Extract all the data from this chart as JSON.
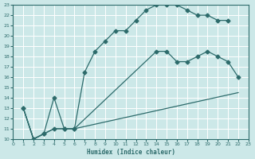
{
  "xlabel": "Humidex (Indice chaleur)",
  "xlim": [
    0,
    23
  ],
  "ylim": [
    10,
    23
  ],
  "xticks": [
    0,
    1,
    2,
    3,
    4,
    5,
    6,
    7,
    8,
    9,
    10,
    11,
    12,
    13,
    14,
    15,
    16,
    17,
    18,
    19,
    20,
    21,
    22,
    23
  ],
  "yticks": [
    10,
    11,
    12,
    13,
    14,
    15,
    16,
    17,
    18,
    19,
    20,
    21,
    22,
    23
  ],
  "bg_color": "#cce8e8",
  "grid_color": "#aacccc",
  "line_color": "#2d6b6b",
  "curve1_x": [
    1,
    2,
    3,
    4,
    5,
    6,
    7,
    8,
    9,
    10,
    11,
    12,
    13,
    14,
    15,
    16,
    17,
    18,
    19,
    20,
    21
  ],
  "curve1_y": [
    13,
    10,
    10.5,
    14,
    11,
    11,
    16.5,
    18.5,
    19.5,
    20.5,
    20.5,
    21.5,
    22.5,
    23,
    23,
    23,
    22.5,
    22,
    22,
    21.5,
    21.5
  ],
  "curve2_x": [
    1,
    2,
    3,
    4,
    5,
    6,
    14,
    15,
    16,
    17,
    18,
    19,
    20,
    21,
    22
  ],
  "curve2_y": [
    13,
    10,
    10.5,
    11,
    11,
    11,
    18.5,
    18.5,
    17.5,
    17.5,
    18.0,
    18.5,
    18,
    17.5,
    16
  ],
  "curve3_x": [
    1,
    2,
    3,
    4,
    5,
    6,
    22
  ],
  "curve3_y": [
    13,
    10,
    10.5,
    11,
    11,
    11,
    14.5
  ]
}
